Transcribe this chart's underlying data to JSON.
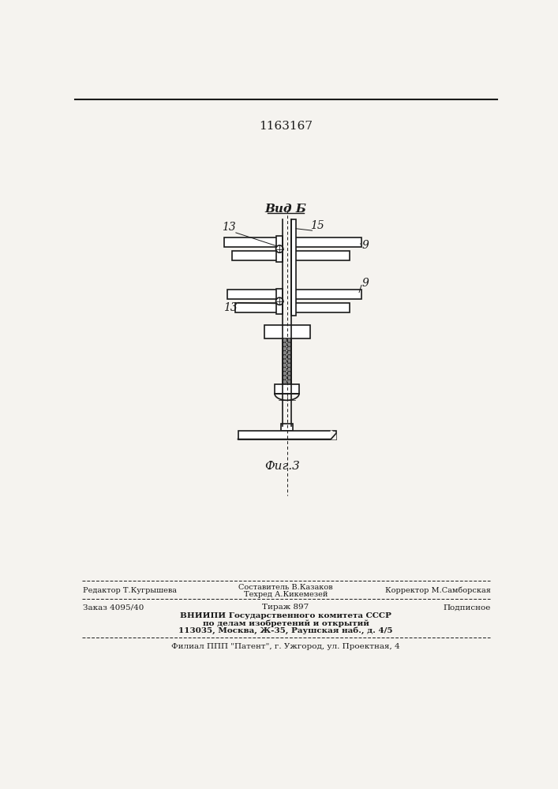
{
  "patent_number": "1163167",
  "title_view": "Вид Б",
  "fig_label": "Фиг.3",
  "label_13_1": "13",
  "label_15": "15",
  "label_9_1": "9",
  "label_9_2": "9",
  "label_13_2": "13",
  "footer_editor": "Редактор Т.Кугрышева",
  "footer_composer": "Составитель В.Казаков",
  "footer_techred": "Техред А.Кикемезей",
  "footer_corrector": "Корректор М.Самборская",
  "footer_order": "Заказ 4095/40",
  "footer_tirazh": "Тираж 897",
  "footer_podpisnoe": "Подписное",
  "footer_org1": "ВНИИПИ Государственного комитета СССР",
  "footer_org2": "по делам изобретений и открытий",
  "footer_org3": "113035, Москва, Ж-35, Раушская наб., д. 4/5",
  "footer_filial": "Филиал ППП \"Патент\", г. Ужгород, ул. Проектная, 4",
  "bg_color": "#f5f3ef",
  "line_color": "#1a1a1a",
  "line_width": 1.2
}
